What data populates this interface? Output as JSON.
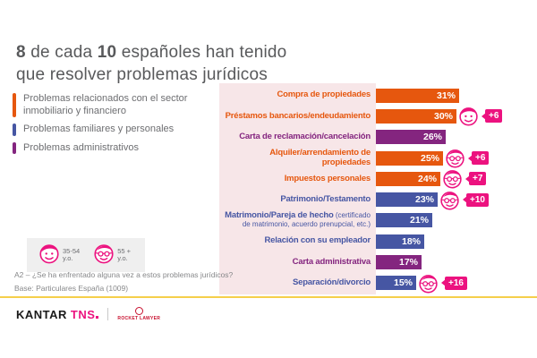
{
  "title": {
    "bold1": "8",
    "mid": " de cada ",
    "bold2": "10",
    "rest": " españoles han tenido",
    "line2": "que resolver problemas jurídicos"
  },
  "legend": {
    "items": [
      {
        "label": "Problemas relacionados con el sector inmobiliario y financiero",
        "color": "#E6570E",
        "group": "inmobiliario-financiero"
      },
      {
        "label": "Problemas familiares y personales",
        "color": "#4656A3",
        "group": "familiares-personales"
      },
      {
        "label": "Problemas administrativos",
        "color": "#84257F",
        "group": "administrativos"
      }
    ]
  },
  "age_legend": {
    "young_label": "35-54",
    "young_sub": "y.o.",
    "old_label": "55 +",
    "old_sub": "y.o."
  },
  "footnote": {
    "question": "A2 – ¿Se ha enfrentado alguna vez a estos problemas jurídicos?",
    "base": "Base: Particulares España (1009)"
  },
  "footer": {
    "brand_black": "KANTAR",
    "brand_pink": "TNS",
    "partner": "ROCKET LAWYER"
  },
  "colors": {
    "orange": "#E6570E",
    "blue": "#4656A3",
    "purple": "#84257F",
    "magenta_accent": "#EC127F",
    "label_background": "#F7E6E8",
    "yellow_rule": "#F5CF4B",
    "title_gray": "#58595B",
    "text_gray": "#6D6E71"
  },
  "chart_data": {
    "type": "bar",
    "orientation": "horizontal",
    "title": "8 de cada 10 españoles han tenido que resolver problemas jurídicos",
    "unit": "%",
    "xlim": [
      0,
      33
    ],
    "grid": false,
    "legend_position": "left",
    "categories": [
      "Compra de propiedades",
      "Préstamos bancarios/endeudamiento",
      "Carta de reclamación/cancelación",
      "Alquiler/arrendamiento de propiedades",
      "Impuestos personales",
      "Patrimonio/Testamento",
      "Matrimonio/Pareja de hecho (certificado de matrimonio, acuerdo prenupcial, etc.)",
      "Relación con su empleador",
      "Carta administrativa",
      "Separación/divorcio"
    ],
    "values": [
      31,
      30,
      26,
      25,
      24,
      23,
      21,
      18,
      17,
      15
    ],
    "rows": [
      {
        "label": "Compra de propiedades",
        "sublabel": null,
        "group": "inmobiliario-financiero",
        "color": "#E6570E",
        "value": 31,
        "value_label": "31%",
        "age_icon": null,
        "delta": null
      },
      {
        "label": "Préstamos bancarios/endeudamiento",
        "sublabel": null,
        "group": "inmobiliario-financiero",
        "color": "#E6570E",
        "value": 30,
        "value_label": "30%",
        "age_icon": "35-54",
        "delta": "+6"
      },
      {
        "label": "Carta de reclamación/cancelación",
        "sublabel": null,
        "group": "administrativos",
        "color": "#84257F",
        "value": 26,
        "value_label": "26%",
        "age_icon": null,
        "delta": null
      },
      {
        "label": "Alquiler/arrendamiento de propiedades",
        "sublabel": null,
        "group": "inmobiliario-financiero",
        "color": "#E6570E",
        "value": 25,
        "value_label": "25%",
        "age_icon": "55+",
        "delta": "+6"
      },
      {
        "label": "Impuestos personales",
        "sublabel": null,
        "group": "inmobiliario-financiero",
        "color": "#E6570E",
        "value": 24,
        "value_label": "24%",
        "age_icon": "55+",
        "delta": "+7"
      },
      {
        "label": "Patrimonio/Testamento",
        "sublabel": null,
        "group": "familiares-personales",
        "color": "#4656A3",
        "value": 23,
        "value_label": "23%",
        "age_icon": "55+",
        "delta": "+10"
      },
      {
        "label": "Matrimonio/Pareja de hecho",
        "sublabel": "(certificado de matrimonio, acuerdo prenupcial, etc.)",
        "group": "familiares-personales",
        "color": "#4656A3",
        "value": 21,
        "value_label": "21%",
        "age_icon": null,
        "delta": null
      },
      {
        "label": "Relación con su empleador",
        "sublabel": null,
        "group": "familiares-personales",
        "color": "#4656A3",
        "value": 18,
        "value_label": "18%",
        "age_icon": null,
        "delta": null
      },
      {
        "label": "Carta administrativa",
        "sublabel": null,
        "group": "administrativos",
        "color": "#84257F",
        "value": 17,
        "value_label": "17%",
        "age_icon": null,
        "delta": null
      },
      {
        "label": "Separación/divorcio",
        "sublabel": null,
        "group": "familiares-personales",
        "color": "#4656A3",
        "value": 15,
        "value_label": "15%",
        "age_icon": "55+",
        "delta": "+16"
      }
    ]
  }
}
